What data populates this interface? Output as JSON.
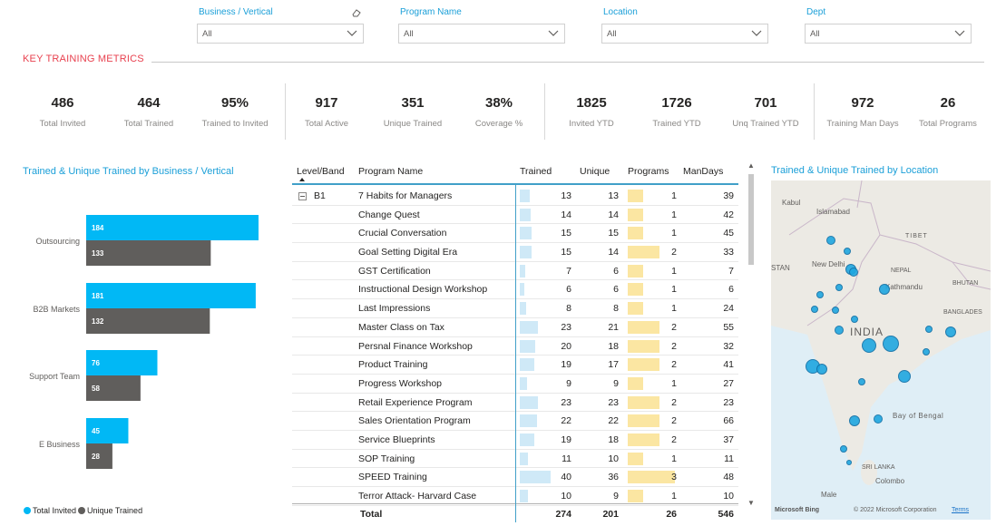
{
  "slicers": [
    {
      "label": "Business / Vertical",
      "value": "All",
      "has_eraser": true
    },
    {
      "label": "Program Name",
      "value": "All"
    },
    {
      "label": "Location",
      "value": "All"
    },
    {
      "label": "Dept",
      "value": "All"
    }
  ],
  "section_title": "KEY TRAINING METRICS",
  "kpis": [
    {
      "value": "486",
      "label": "Total Invited"
    },
    {
      "value": "464",
      "label": "Total Trained"
    },
    {
      "value": "95%",
      "label": "Trained to Invited"
    },
    {
      "value": "917",
      "label": "Total Active"
    },
    {
      "value": "351",
      "label": "Unique Trained"
    },
    {
      "value": "38%",
      "label": "Coverage %"
    },
    {
      "value": "1825",
      "label": "Invited YTD"
    },
    {
      "value": "1726",
      "label": "Trained YTD"
    },
    {
      "value": "701",
      "label": "Unq Trained YTD"
    },
    {
      "value": "972",
      "label": "Training Man Days"
    },
    {
      "value": "26",
      "label": "Total Programs"
    }
  ],
  "bar_chart": {
    "title": "Trained & Unique Trained by Business / Vertical",
    "colors": {
      "Total Invited": "#01b8f5",
      "Unique Trained": "#605e5c"
    },
    "chart_data": {
      "type": "bar",
      "orientation": "horizontal",
      "categories": [
        "Outsourcing",
        "B2B Markets",
        "Support Team",
        "E Business"
      ],
      "series": [
        {
          "name": "Total Invited",
          "values": [
            184,
            181,
            76,
            45
          ]
        },
        {
          "name": "Unique Trained",
          "values": [
            133,
            132,
            58,
            28
          ]
        }
      ],
      "legend": "bottom-left",
      "grid": false
    },
    "legend": [
      "Total Invited",
      "Unique Trained"
    ]
  },
  "table": {
    "headers": {
      "level": "Level/Band",
      "program": "Program Name",
      "trained": "Trained",
      "unique": "Unique",
      "programs": "Programs",
      "mandays": "ManDays"
    },
    "group": "B1",
    "rows": [
      {
        "program": "7 Habits for Managers",
        "trained": 13,
        "unique": 13,
        "programs": 1,
        "mandays": 39
      },
      {
        "program": "Change Quest",
        "trained": 14,
        "unique": 14,
        "programs": 1,
        "mandays": 42
      },
      {
        "program": "Crucial Conversation",
        "trained": 15,
        "unique": 15,
        "programs": 1,
        "mandays": 45
      },
      {
        "program": "Goal Setting Digital Era",
        "trained": 15,
        "unique": 14,
        "programs": 2,
        "mandays": 33
      },
      {
        "program": "GST Certification",
        "trained": 7,
        "unique": 6,
        "programs": 1,
        "mandays": 7
      },
      {
        "program": "Instructional Design Workshop",
        "trained": 6,
        "unique": 6,
        "programs": 1,
        "mandays": 6
      },
      {
        "program": "Last Impressions",
        "trained": 8,
        "unique": 8,
        "programs": 1,
        "mandays": 24
      },
      {
        "program": "Master Class on Tax",
        "trained": 23,
        "unique": 21,
        "programs": 2,
        "mandays": 55
      },
      {
        "program": "Persnal Finance Workshop",
        "trained": 20,
        "unique": 18,
        "programs": 2,
        "mandays": 32
      },
      {
        "program": "Product Training",
        "trained": 19,
        "unique": 17,
        "programs": 2,
        "mandays": 41
      },
      {
        "program": "Progress Workshop",
        "trained": 9,
        "unique": 9,
        "programs": 1,
        "mandays": 27
      },
      {
        "program": "Retail Experience Program",
        "trained": 23,
        "unique": 23,
        "programs": 2,
        "mandays": 23
      },
      {
        "program": "Sales Orientation Program",
        "trained": 22,
        "unique": 22,
        "programs": 2,
        "mandays": 66
      },
      {
        "program": "Service Blueprints",
        "trained": 19,
        "unique": 18,
        "programs": 2,
        "mandays": 37
      },
      {
        "program": "SOP Training",
        "trained": 11,
        "unique": 10,
        "programs": 1,
        "mandays": 11
      },
      {
        "program": "SPEED Training",
        "trained": 40,
        "unique": 36,
        "programs": 3,
        "mandays": 48
      },
      {
        "program": "Terror Attack- Harvard Case",
        "trained": 10,
        "unique": 9,
        "programs": 1,
        "mandays": 10
      }
    ],
    "total": {
      "label": "Total",
      "trained": "274",
      "unique": "201",
      "programs": "26",
      "mandays": "546"
    },
    "colors": {
      "trained_bar": "#cfe9f7",
      "programs_bar": "#fbe6a2"
    }
  },
  "map": {
    "title": "Trained & Unique Trained by Location",
    "labels": {
      "kabul": "Kabul",
      "islamabad": "Islamabad",
      "tibet": "TIBET",
      "stan": "STAN",
      "new_delhi": "New Delhi",
      "nepal": "NEPAL",
      "kathmandu": "Kathmandu",
      "bhutan": "BHUTAN",
      "bangladesh": "BANGLADES",
      "india": "INDIA",
      "bay": "Bay of Bengal",
      "sri_lanka": "SRI LANKA",
      "colombo": "Colombo",
      "male": "Male"
    },
    "footer": {
      "brand": "Microsoft Bing",
      "copyright": "© 2022 Microsoft Corporation",
      "terms": "Terms"
    },
    "bubble_color": "#1fa7e0"
  }
}
